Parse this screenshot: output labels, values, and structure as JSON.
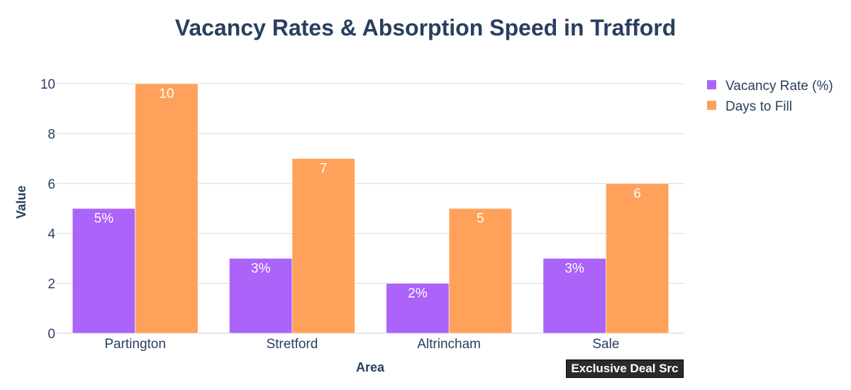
{
  "colors": {
    "title": "#2a3f5f",
    "text": "#2a3f5f",
    "grid": "#d9d9d9",
    "axis_line": "#cfcfcf",
    "label_text": "#ffffff"
  },
  "chart_data": {
    "type": "bar",
    "title": "Vacancy Rates & Absorption Speed in Trafford",
    "xlabel": "Area",
    "ylabel": "Value",
    "categories": [
      "Partington",
      "Stretford",
      "Altrincham",
      "Sale"
    ],
    "series": [
      {
        "name": "Vacancy Rate (%)",
        "color": "#ab63fa",
        "values": [
          5,
          3,
          2,
          3
        ],
        "labels": [
          "5%",
          "3%",
          "2%",
          "3%"
        ]
      },
      {
        "name": "Days to Fill",
        "color": "#ffa15a",
        "values": [
          10,
          7,
          5,
          6
        ],
        "labels": [
          "10",
          "7",
          "5",
          "6"
        ]
      }
    ],
    "ylim": [
      0,
      10
    ],
    "yticks": [
      0,
      2,
      4,
      6,
      8,
      10
    ],
    "grid": true,
    "legend_position": "top-right"
  },
  "watermark": "Exclusive Deal Src"
}
